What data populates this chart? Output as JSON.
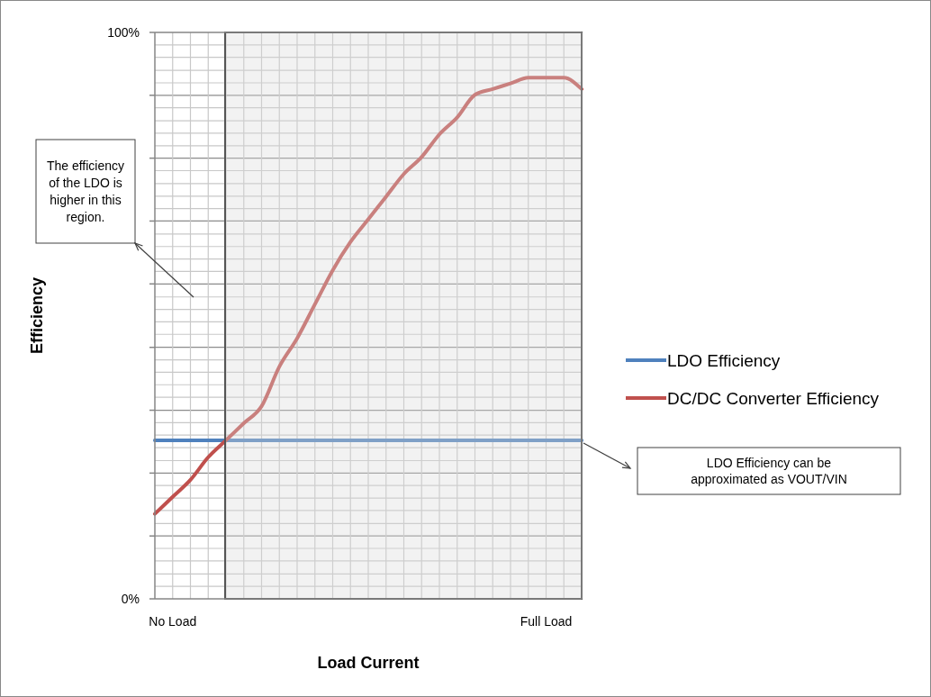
{
  "chart_data": {
    "type": "line",
    "xlabel": "Load Current",
    "ylabel": "Efficiency",
    "categories": [
      null,
      "No Load",
      null,
      null,
      null,
      null,
      null,
      null,
      null,
      null,
      null,
      null,
      null,
      null,
      null,
      null,
      null,
      null,
      null,
      null,
      null,
      null,
      "Full Load",
      null,
      null
    ],
    "ylim": [
      0,
      100
    ],
    "yticks": [
      {
        "value": 0,
        "label": "0%"
      },
      {
        "value": 2.2,
        "label": null
      },
      {
        "value": 4.4,
        "label": null
      },
      {
        "value": 6.7,
        "label": null
      },
      {
        "value": 8.9,
        "label": null
      },
      {
        "value": 11.1,
        "label": null
      },
      {
        "value": 13.3,
        "label": null
      },
      {
        "value": 15.6,
        "label": null
      },
      {
        "value": 17.8,
        "label": null
      },
      {
        "value": 20,
        "label": null
      },
      {
        "value": 22.2,
        "label": null
      },
      {
        "value": 24.4,
        "label": null
      },
      {
        "value": 26.7,
        "label": null
      },
      {
        "value": 28.9,
        "label": null
      },
      {
        "value": 31.1,
        "label": null
      },
      {
        "value": 33.3,
        "label": null
      },
      {
        "value": 35.6,
        "label": null
      },
      {
        "value": 37.8,
        "label": null
      },
      {
        "value": 40,
        "label": null
      },
      {
        "value": 42.2,
        "label": null
      },
      {
        "value": 44.4,
        "label": null
      },
      {
        "value": 46.7,
        "label": null
      },
      {
        "value": 48.9,
        "label": null
      },
      {
        "value": 51.1,
        "label": null
      },
      {
        "value": 53.3,
        "label": null
      },
      {
        "value": 55.6,
        "label": null
      },
      {
        "value": 57.8,
        "label": null
      },
      {
        "value": 60,
        "label": null
      },
      {
        "value": 62.2,
        "label": null
      },
      {
        "value": 64.4,
        "label": null
      },
      {
        "value": 66.7,
        "label": null
      },
      {
        "value": 68.9,
        "label": null
      },
      {
        "value": 71.1,
        "label": null
      },
      {
        "value": 73.3,
        "label": null
      },
      {
        "value": 75.6,
        "label": null
      },
      {
        "value": 77.8,
        "label": null
      },
      {
        "value": 80,
        "label": null
      },
      {
        "value": 82.2,
        "label": null
      },
      {
        "value": 84.4,
        "label": null
      },
      {
        "value": 86.7,
        "label": null
      },
      {
        "value": 88.9,
        "label": null
      },
      {
        "value": 91.1,
        "label": null
      },
      {
        "value": 93.3,
        "label": null
      },
      {
        "value": 95.6,
        "label": null
      },
      {
        "value": 97.8,
        "label": null
      },
      {
        "value": 100,
        "label": "100%"
      }
    ],
    "grid": true,
    "legend": "right",
    "series": [
      {
        "name": "LDO Efficiency",
        "color": "#4f81bd",
        "values": [
          28,
          28,
          28,
          28,
          28,
          28,
          28,
          28,
          28,
          28,
          28,
          28,
          28,
          28,
          28,
          28,
          28,
          28,
          28,
          28,
          28,
          28,
          28,
          28,
          28
        ]
      },
      {
        "name": "DC/DC Converter Efficiency",
        "color": "#c0504d",
        "values": [
          15,
          18,
          21,
          25,
          28,
          31,
          34,
          41,
          46,
          52,
          58,
          63,
          67,
          71,
          75,
          78,
          82,
          85,
          89,
          90,
          91,
          92,
          92,
          92,
          90
        ]
      }
    ],
    "annotations": [
      "The efficiency of the LDO is higher in this region.",
      "LDO Efficiency can be approximated as VOUT/VIN"
    ]
  }
}
